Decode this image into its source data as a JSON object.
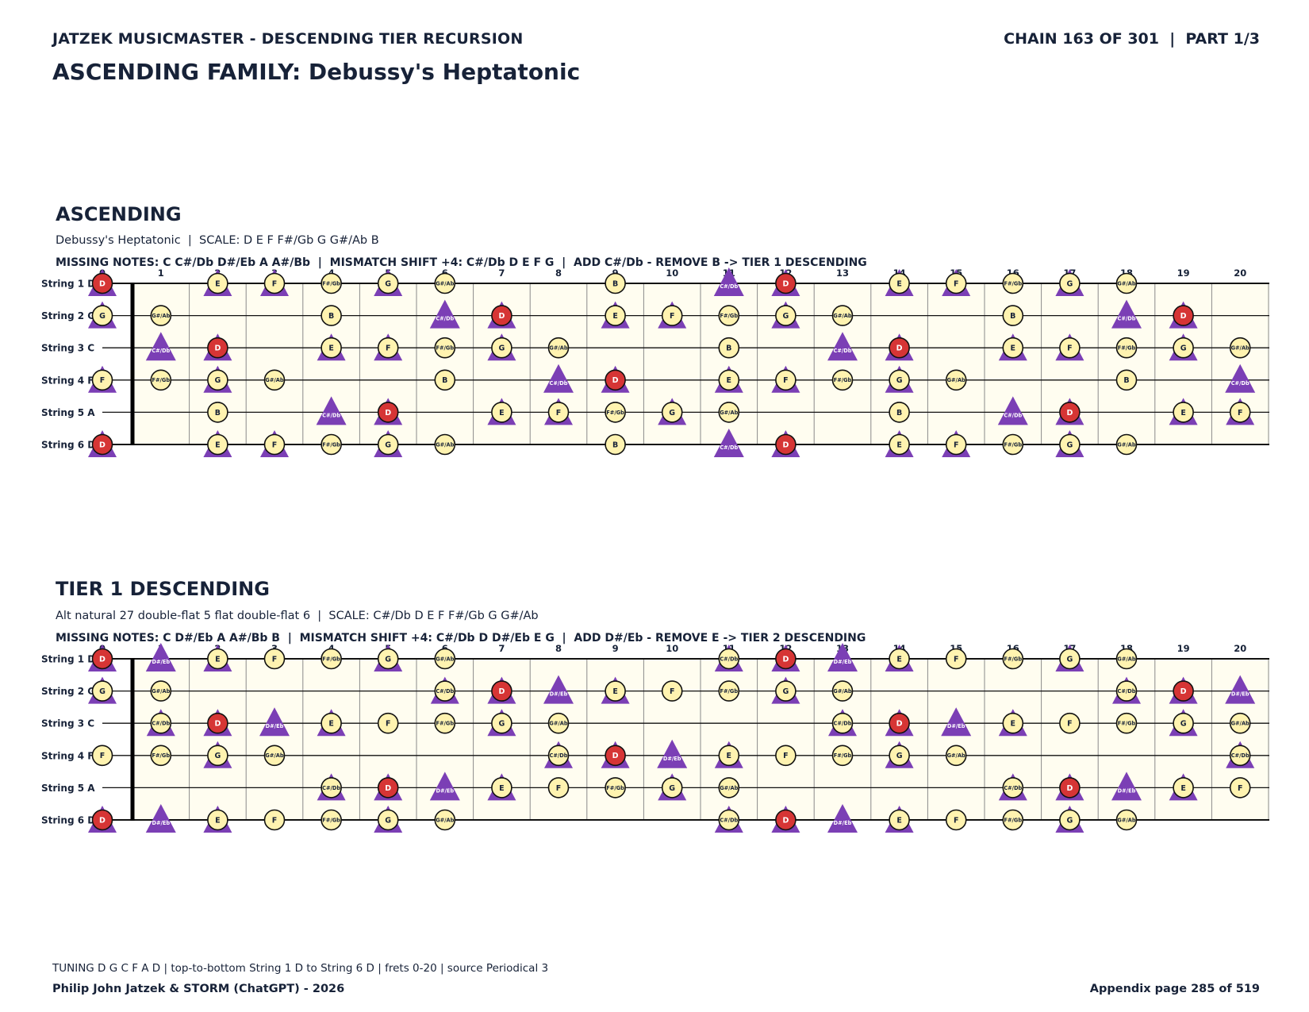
{
  "header": {
    "left": "JATZEK MUSICMASTER - DESCENDING TIER RECURSION",
    "right": "CHAIN 163 OF 301  |  PART 1/3"
  },
  "title": "ASCENDING FAMILY: Debussy's Heptatonic",
  "frets": [
    "0",
    "1",
    "2",
    "3",
    "4",
    "5",
    "6",
    "7",
    "8",
    "9",
    "10",
    "11",
    "12",
    "13",
    "14",
    "15",
    "16",
    "17",
    "18",
    "19",
    "20"
  ],
  "strings": [
    "String 1 D",
    "String 2 G",
    "String 3 C",
    "String 4 F",
    "String 5 A",
    "String 6 D"
  ],
  "open_notes": [
    "D",
    "G",
    "C",
    "F",
    "A",
    "D"
  ],
  "chromatic": [
    "C",
    "C#/Db",
    "D",
    "D#/Eb",
    "E",
    "F",
    "F#/Gb",
    "G",
    "G#/Ab",
    "A",
    "A#/Bb",
    "B"
  ],
  "colors": {
    "root": "#d63535",
    "note": "#fff3b0",
    "triangle": "#7b3fb5",
    "board": "#fffdf0"
  },
  "sections": [
    {
      "title": "ASCENDING",
      "subtitle": "Debussy's Heptatonic  |  SCALE: D E F F#/Gb G G#/Ab B",
      "note": "MISSING NOTES: C C#/Db D#/Eb A A#/Bb  |  MISMATCH SHIFT +4: C#/Db D E F G  |  ADD C#/Db - REMOVE B -> TIER 1 DESCENDING",
      "root": "D",
      "scale": [
        "D",
        "E",
        "F",
        "F#/Gb",
        "G",
        "G#/Ab",
        "B"
      ],
      "shifted": [
        "C#/Db",
        "D",
        "E",
        "F",
        "G"
      ]
    },
    {
      "title": "TIER 1 DESCENDING",
      "subtitle": "Alt natural 27 double-flat 5 flat double-flat 6  |  SCALE: C#/Db D E F F#/Gb G G#/Ab",
      "note": "MISSING NOTES: C D#/Eb A A#/Bb B  |  MISMATCH SHIFT +4: C#/Db D D#/Eb E G  |  ADD D#/Eb - REMOVE E -> TIER 2 DESCENDING",
      "root": "D",
      "scale": [
        "C#/Db",
        "D",
        "E",
        "F",
        "F#/Gb",
        "G",
        "G#/Ab"
      ],
      "shifted": [
        "C#/Db",
        "D",
        "D#/Eb",
        "E",
        "G"
      ]
    }
  ],
  "footer": {
    "note": "TUNING D G C F A D | top-to-bottom String 1 D to String 6 D | frets 0-20 | source Periodical 3",
    "left": "Philip John Jatzek & STORM (ChatGPT) - 2026",
    "right": "Appendix page 285 of 519"
  }
}
